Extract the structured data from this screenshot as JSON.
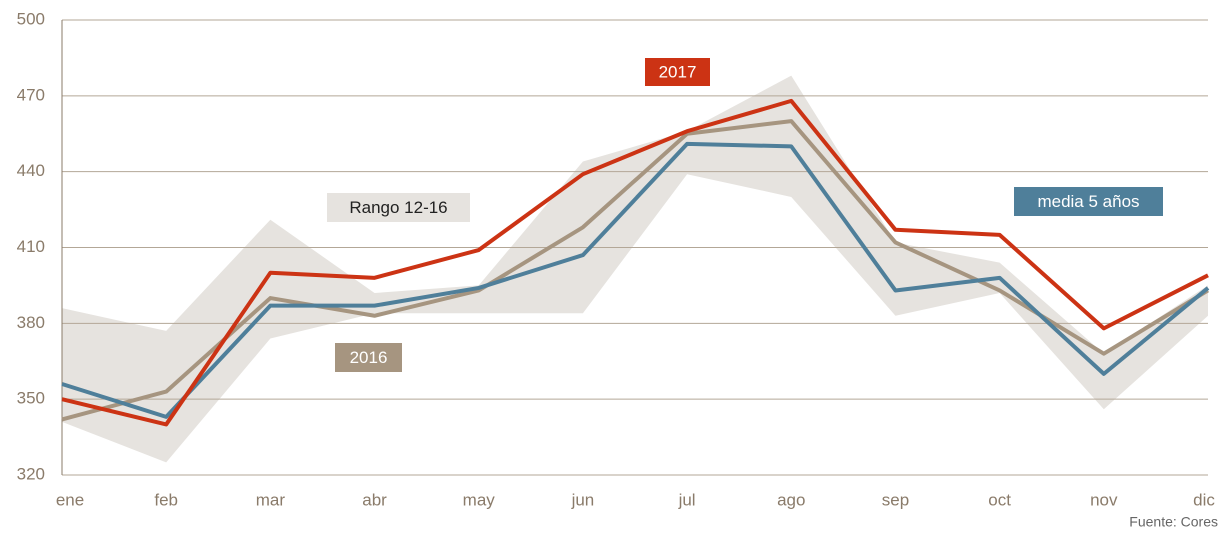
{
  "chart_data": {
    "type": "line",
    "categories": [
      "ene",
      "feb",
      "mar",
      "abr",
      "may",
      "jun",
      "jul",
      "ago",
      "sep",
      "oct",
      "nov",
      "dic"
    ],
    "band": {
      "name": "Rango 12-16",
      "color": "#e6e3df",
      "upper": [
        386,
        377,
        421,
        392,
        395,
        444,
        456,
        478,
        412,
        404,
        368,
        395
      ],
      "lower": [
        341,
        325,
        374,
        384,
        384,
        384,
        439,
        430,
        383,
        392,
        346,
        383
      ]
    },
    "series": [
      {
        "name": "2016",
        "color": "#a69580",
        "values": [
          342,
          353,
          390,
          383,
          393,
          418,
          455,
          460,
          412,
          393,
          368,
          393
        ]
      },
      {
        "name": "media 5 años",
        "color": "#4f7f9a",
        "values": [
          356,
          343,
          387,
          387,
          394,
          407,
          451,
          450,
          393,
          398,
          360,
          394
        ]
      },
      {
        "name": "2017",
        "color": "#cc3314",
        "values": [
          350,
          340,
          400,
          398,
          409,
          439,
          456,
          468,
          417,
          415,
          378,
          399
        ]
      }
    ],
    "ylim": [
      320,
      500
    ],
    "yticks": [
      320,
      350,
      380,
      410,
      440,
      470,
      500
    ],
    "grid": true,
    "source": "Fuente: Cores"
  }
}
